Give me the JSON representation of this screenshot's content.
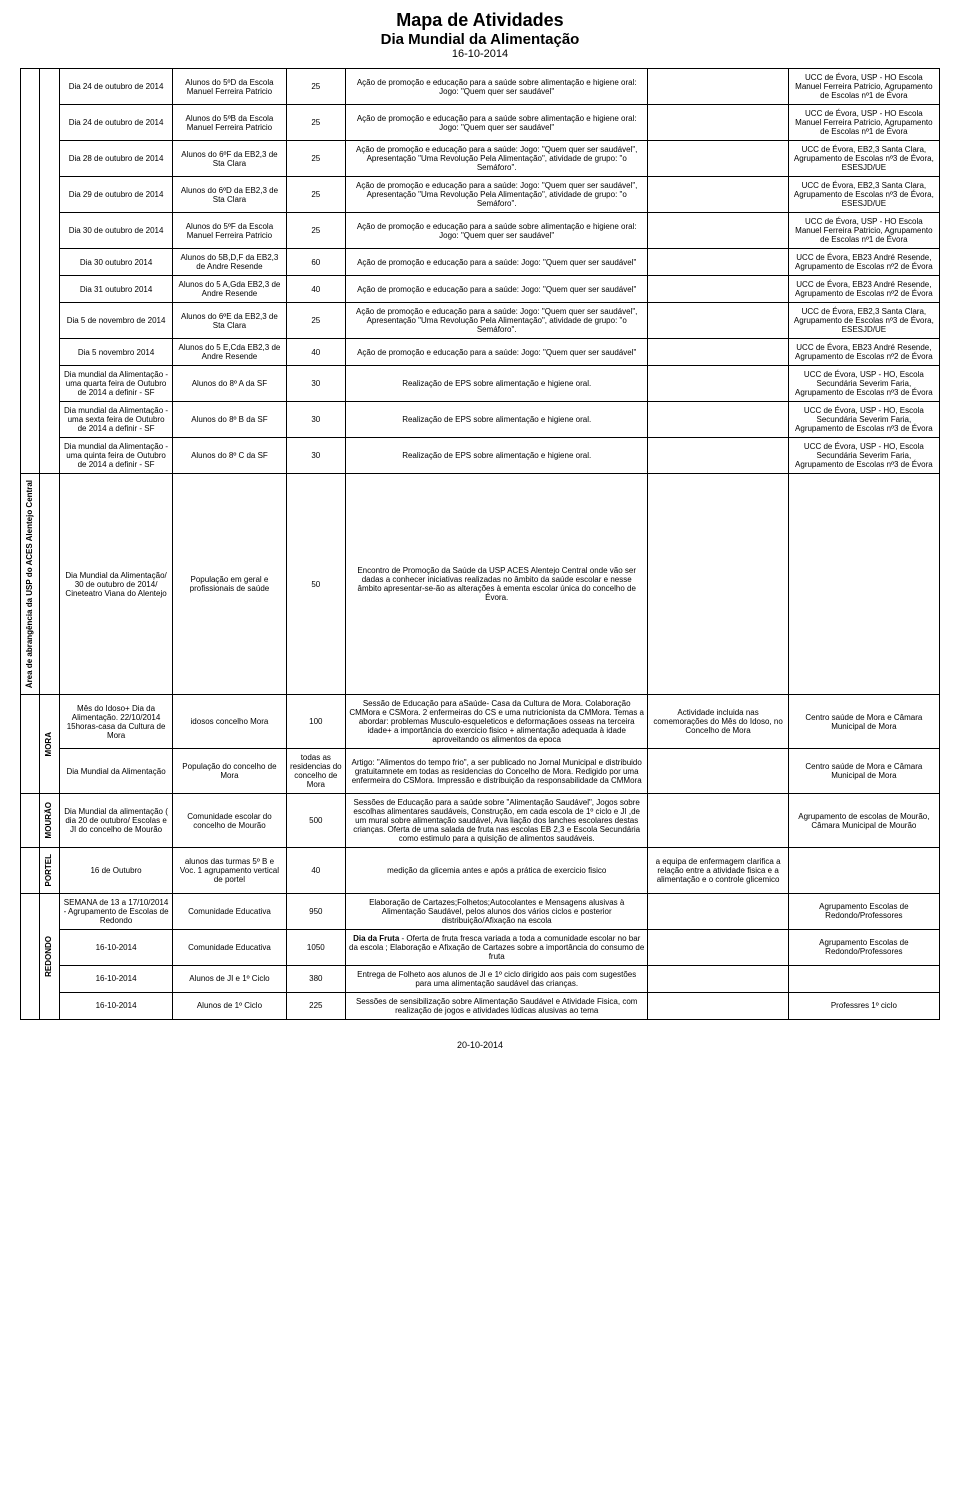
{
  "header": {
    "title": "Mapa de Atividades",
    "subtitle": "Dia Mundial da Alimentação",
    "date": "16-10-2014"
  },
  "footer": "20-10-2014",
  "blocks": [
    {
      "side1": "",
      "side2": "",
      "side1_rowspan": 12,
      "side2_rowspan": 12,
      "rows": [
        {
          "date": "Dia 24 de outubro de 2014",
          "target": "Alunos do 5ºD da Escola Manuel Ferreira Patricio",
          "num": "25",
          "desc": "Ação de promoção e educação para a saúde sobre alimentação e higiene oral: Jogo: \"Quem quer ser saudável\"",
          "extra": "",
          "partner": "UCC de Évora, USP - HO Escola Manuel Ferreira Patricio, Agrupamento de Escolas nº1 de Évora"
        },
        {
          "date": "Dia 24 de outubro de 2014",
          "target": "Alunos do 5ºB da Escola Manuel Ferreira Patricio",
          "num": "25",
          "desc": "Ação de promoção e educação para a saúde sobre alimentação e higiene oral: Jogo: \"Quem quer ser saudável\"",
          "extra": "",
          "partner": "UCC de Évora, USP - HO Escola Manuel Ferreira Patricio, Agrupamento de Escolas nº1 de Évora"
        },
        {
          "date": "Dia 28 de outubro de 2014",
          "target": "Alunos do 6ºF da EB2,3 de Sta Clara",
          "num": "25",
          "desc": "Ação de promoção e educação para a saúde: Jogo: \"Quem quer ser saudável\", Apresentação \"Uma Revolução Pela Alimentação\", atividade de grupo: \"o Semáforo\".",
          "extra": "",
          "partner": "UCC de Évora, EB2,3 Santa Clara, Agrupamento de Escolas nº3 de Évora, ESESJD/UE"
        },
        {
          "date": "Dia 29 de outubro de 2014",
          "target": "Alunos do 6ºD da EB2,3 de Sta Clara",
          "num": "25",
          "desc": "Ação de promoção e educação para a saúde: Jogo: \"Quem quer ser saudável\", Apresentação \"Uma Revolução Pela Alimentação\", atividade de grupo: \"o Semáforo\".",
          "extra": "",
          "partner": "UCC de Évora, EB2,3 Santa Clara, Agrupamento de Escolas nº3 de Évora, ESESJD/UE"
        },
        {
          "date": "Dia 30 de outubro de 2014",
          "target": "Alunos do 5ºF da Escola Manuel Ferreira Patricio",
          "num": "25",
          "desc": "Ação de promoção e educação para a saúde sobre alimentação e higiene oral: Jogo: \"Quem quer ser saudável\"",
          "extra": "",
          "partner": "UCC de Évora, USP - HO Escola Manuel Ferreira Patricio, Agrupamento de Escolas nº1 de Évora"
        },
        {
          "date": "Dia 30 outubro 2014",
          "target": "Alunos do 5B,D,F da EB2,3 de Andre Resende",
          "num": "60",
          "desc": "Ação de promoção e educação para a saúde: Jogo: \"Quem quer ser saudável\"",
          "extra": "",
          "partner": "UCC de Évora, EB23 André Resende, Agrupamento de Escolas nº2 de Évora"
        },
        {
          "date": "Dia 31 outubro 2014",
          "target": "Alunos do 5 A,Gda EB2,3 de Andre Resende",
          "num": "40",
          "desc": "Ação de promoção e educação para a saúde: Jogo: \"Quem quer ser saudável\"",
          "extra": "",
          "partner": "UCC de Évora, EB23 André Resende, Agrupamento de Escolas nº2 de Évora"
        },
        {
          "date": "Dia 5 de novembro de 2014",
          "target": "Alunos do 6ºE da EB2,3 de Sta Clara",
          "num": "25",
          "desc": "Ação de promoção e educação para a saúde: Jogo: \"Quem quer ser saudável\", Apresentação \"Uma Revolução Pela Alimentação\", atividade de grupo: \"o Semáforo\".",
          "extra": "",
          "partner": "UCC de Évora, EB2,3 Santa Clara, Agrupamento de Escolas nº3 de Évora, ESESJD/UE"
        },
        {
          "date": "Dia 5 novembro 2014",
          "target": "Alunos do 5 E,Cda EB2,3 de Andre Resende",
          "num": "40",
          "desc": "Ação de promoção e educação para a saúde: Jogo: \"Quem quer ser saudável\"",
          "extra": "",
          "partner": "UCC de Évora, EB23 André Resende, Agrupamento de Escolas nº2 de Évora"
        },
        {
          "date": "Dia mundial da Alimentação - uma quarta feira de Outubro de 2014 a definir - SF",
          "target": "Alunos do 8º A da SF",
          "num": "30",
          "desc": "Realização de EPS sobre alimentação e higiene oral.",
          "extra": "",
          "partner": "UCC de Évora, USP - HO, Escola Secundária Severim Faria, Agrupamento de Escolas nº3 de Évora"
        },
        {
          "date": "Dia mundial da Alimentação - uma sexta feira de Outubro de 2014 a definir - SF",
          "target": "Alunos do 8º B da SF",
          "num": "30",
          "desc": "Realização de EPS sobre alimentação e higiene oral.",
          "extra": "",
          "partner": "UCC de Évora, USP - HO, Escola Secundária Severim Faria, Agrupamento de Escolas nº3 de Évora"
        },
        {
          "date": "Dia mundial da Alimentação - uma quinta feira de Outubro de 2014 a definir - SF",
          "target": "Alunos do 8º C da SF",
          "num": "30",
          "desc": "Realização de EPS sobre alimentação e higiene oral.",
          "extra": "",
          "partner": "UCC de Évora, USP - HO, Escola Secundária Severim Faria, Agrupamento de Escolas nº3 de Évora"
        }
      ]
    },
    {
      "side1": "Área de abrangência da USP do ACES Alentejo Central",
      "side2": "",
      "side1_rowspan": 1,
      "side2_rowspan": 1,
      "rows": [
        {
          "date": "Dia Mundial da Alimentação/ 30 de outubro de 2014/ Cineteatro Viana do Alentejo",
          "target": "População em geral e profissionais de saúde",
          "num": "50",
          "desc": "Encontro de Promoção da Saúde da USP ACES Alentejo Central onde vão ser dadas a conhecer iniciativas realizadas no âmbito da saúde escolar e nesse âmbito apresentar-se-ão as alterações à ementa escolar única do concelho de Évora.",
          "extra": "",
          "partner": ""
        }
      ]
    },
    {
      "side1": "",
      "side2": "MORA",
      "side1_rowspan": 2,
      "side2_rowspan": 2,
      "rows": [
        {
          "date": "Mês do Idoso+ Dia da Alimentação. 22/10/2014 15horas-casa da Cultura de Mora",
          "target": "idosos concelho Mora",
          "num": "100",
          "desc": "Sessão de Educação para aSaúde- Casa da Cultura de Mora. Colaboração CMMora e CSMora. 2 enfermeiras do CS e uma nutricionista da CMMora. Temas a abordar: problemas Musculo-esqueleticos e deformaçãoes osseas na terceira idade+ a importância do exercicio fisico + alimentação adequada à idade aproveitando os alimentos da epoca",
          "extra": "Actividade incluida nas comemorações do Mês do Idoso, no Concelho de Mora",
          "partner": "Centro saúde de Mora e Câmara Municipal de Mora"
        },
        {
          "date": "Dia Mundial da Alimentação",
          "target": "População do concelho de Mora",
          "num": "todas as residencias do concelho de Mora",
          "desc": "Artigo: \"Alimentos do tempo frio\", a ser publicado no Jornal Municipal e distribuido gratuitamnete em todas as residencias do Concelho de Mora. Redigido por uma enfermeira do CSMora. Impressão e distribuição da responsabilidade da CMMora",
          "extra": "",
          "partner": "Centro saúde de Mora e Câmara Municipal de Mora"
        }
      ]
    },
    {
      "side1": "",
      "side2": "MOURÃO",
      "side1_rowspan": 1,
      "side2_rowspan": 1,
      "rows": [
        {
          "date": "Dia Mundial da alimentação ( dia 20 de outubro/ Escolas e JI do concelho de Mourão",
          "target": "Comunidade escolar do concelho de Mourão",
          "num": "500",
          "desc": "Sessões de Educação para a saúde sobre \"Alimentação Saudável\", Jogos sobre escolhas alimentares saudáveis, Construção, em cada escola de 1º ciclo e JI ,de um mural sobre alimentação saudável, Ava liação dos lanches escolares destas crianças. Oferta de uma salada de fruta nas escolas EB 2,3 e Escola Secundária como estimulo para a quisição de alimentos saudáveis.",
          "extra": "",
          "partner": "Agrupamento de escolas de Mourão, Câmara Municipal de Mourão"
        }
      ]
    },
    {
      "side1": "",
      "side2": "PORTEL",
      "side1_rowspan": 1,
      "side2_rowspan": 1,
      "rows": [
        {
          "date": "16 de Outubro",
          "target": "alunos das turmas 5º B e Voc. 1 agrupamento vertical de portel",
          "num": "40",
          "desc": "medição da glicemia antes e após a prática de exercicio fisico",
          "extra": "a equipa de enfermagem clarifica a relação entre a atividade fisica e a alimentação e o controle glicemico",
          "partner": ""
        }
      ]
    },
    {
      "side1": "",
      "side2": "REDONDO",
      "side1_rowspan": 4,
      "side2_rowspan": 4,
      "rows": [
        {
          "date": "SEMANA de 13 a 17/10/2014 - Agrupamento de Escolas de Redondo",
          "target": "Comunidade Educativa",
          "num": "950",
          "desc": "Elaboração de Cartazes;Folhetos;Autocolantes e Mensagens alusivas à Alimentação Saudável, pelos alunos dos vários ciclos e posterior distribuição/Afixação na escola",
          "extra": "",
          "partner": "Agrupamento Escolas de Redondo/Professores"
        },
        {
          "date": "16-10-2014",
          "target": "Comunidade Educativa",
          "num": "1050",
          "desc": "<span class=\"bold\">Dia da Fruta</span> - Oferta de fruta fresca variada a toda a comunidade escolar no bar da escola ; Elaboração e Afixação de Cartazes sobre a importância do consumo de fruta",
          "extra": "",
          "partner": "Agrupamento Escolas de Redondo/Professores"
        },
        {
          "date": "16-10-2014",
          "target": "Alunos de JI e 1º Ciclo",
          "num": "380",
          "desc": "Entrega de Folheto aos alunos de JI e 1º ciclo dirigido aos pais com sugestões para uma alimentação saudável das crianças.",
          "extra": "",
          "partner": ""
        },
        {
          "date": "16-10-2014",
          "target": "Alunos de 1º Ciclo",
          "num": "225",
          "desc": "Sessões de sensibilização sobre Alimentação Saudável e Atividade Fisica, com realização de jogos e atividades lúdicas alusivas ao tema",
          "extra": "",
          "partner": "Professres 1º ciclo"
        }
      ]
    }
  ]
}
